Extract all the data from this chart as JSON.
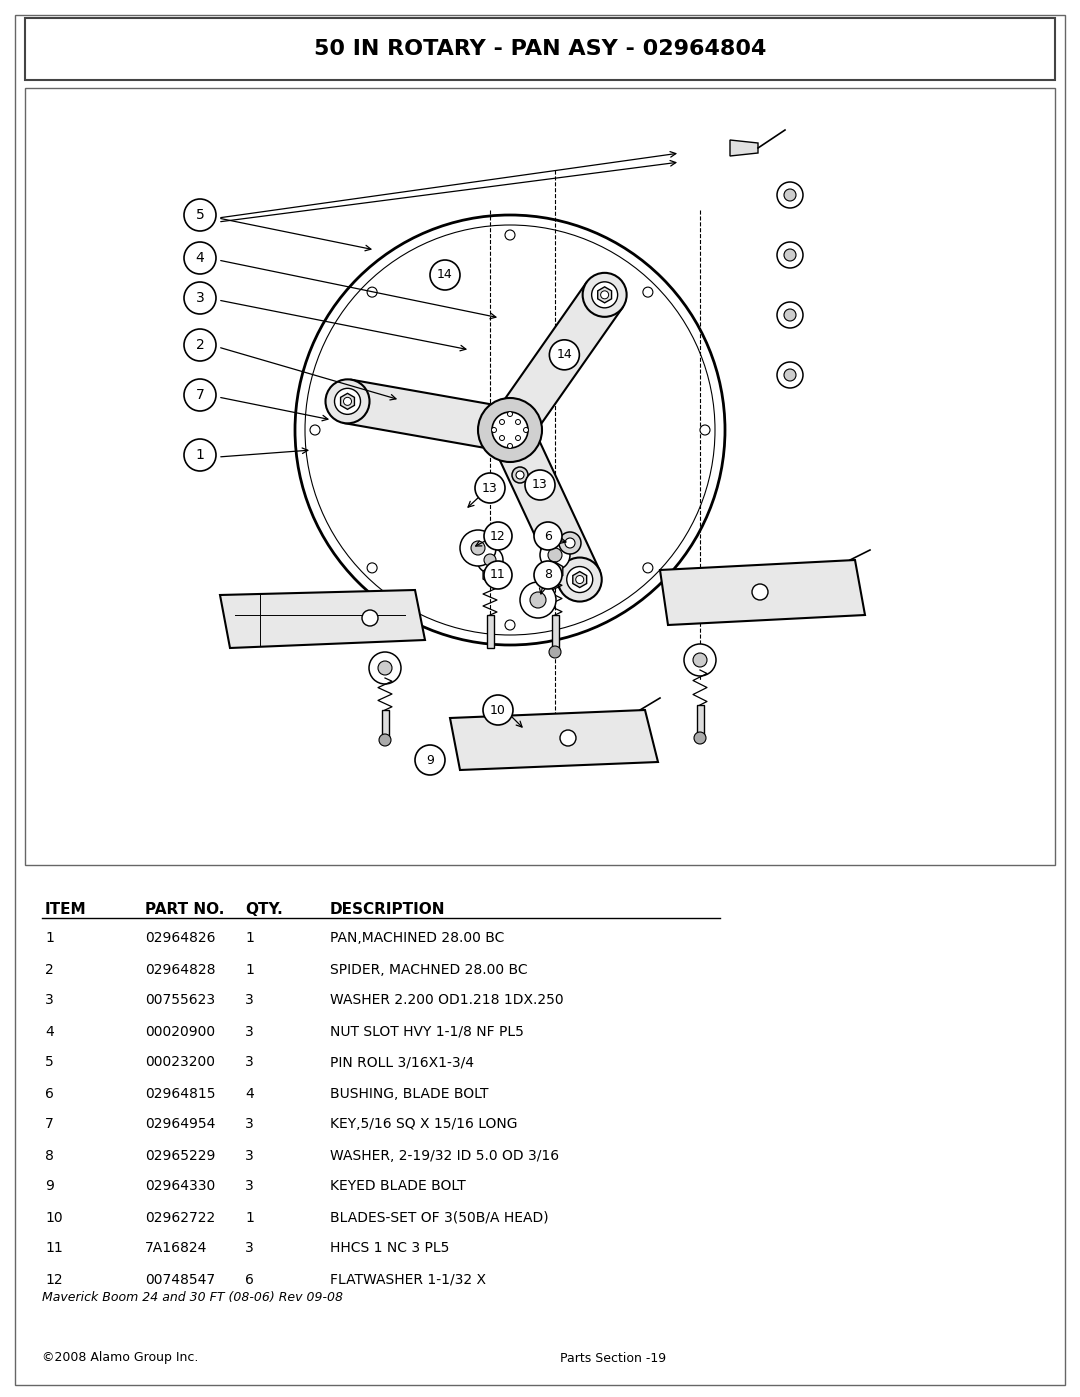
{
  "title": "50 IN ROTARY - PAN ASY - 02964804",
  "bg_color": "#ffffff",
  "table_headers": [
    "ITEM",
    "PART NO.",
    "QTY.",
    "DESCRIPTION"
  ],
  "table_rows": [
    [
      "1",
      "02964826",
      "1",
      "PAN,MACHINED 28.00 BC"
    ],
    [
      "2",
      "02964828",
      "1",
      "SPIDER, MACHNED 28.00 BC"
    ],
    [
      "3",
      "00755623",
      "3",
      "WASHER 2.200 OD1.218 1DX.250"
    ],
    [
      "4",
      "00020900",
      "3",
      "NUT SLOT HVY 1-1/8 NF PL5"
    ],
    [
      "5",
      "00023200",
      "3",
      "PIN ROLL 3/16X1-3/4"
    ],
    [
      "6",
      "02964815",
      "4",
      "BUSHING, BLADE BOLT"
    ],
    [
      "7",
      "02964954",
      "3",
      "KEY,5/16 SQ X 15/16 LONG"
    ],
    [
      "8",
      "02965229",
      "3",
      "WASHER, 2-19/32 ID 5.0 OD 3/16"
    ],
    [
      "9",
      "02964330",
      "3",
      "KEYED BLADE BOLT"
    ],
    [
      "10",
      "02962722",
      "1",
      "BLADES-SET OF 3(50B/A HEAD)"
    ],
    [
      "11",
      "7A16824",
      "3",
      "HHCS 1 NC 3 PL5"
    ],
    [
      "12",
      "00748547",
      "6",
      "FLATWASHER 1-1/32 X"
    ]
  ],
  "footer_left": "Maverick Boom 24 and 30 FT (08-06) Rev 09-08",
  "footer_right1": "©2008 Alamo Group Inc.",
  "footer_right2": "Parts Section -19"
}
